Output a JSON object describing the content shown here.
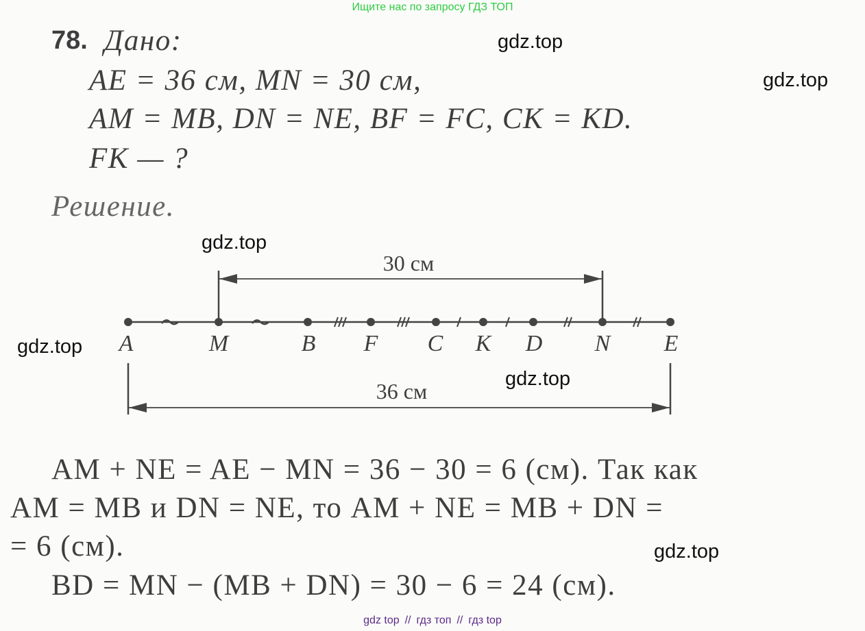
{
  "header": {
    "banner": "Ищите нас по запросу ГДЗ ТОП"
  },
  "problem": {
    "number": "78.",
    "given_label": "Дано:",
    "given": [
      "AE = 36 см, MN = 30 см,",
      "AM = MB, DN = NE, BF = FC, CK = KD.",
      "FK — ?"
    ],
    "solution_label": "Решение."
  },
  "diagram": {
    "points": [
      "A",
      "M",
      "B",
      "F",
      "C",
      "K",
      "D",
      "N",
      "E"
    ],
    "top_dimension": "30 см",
    "bottom_dimension": "36 см"
  },
  "solution": [
    "AM + NE = AE − MN = 36 − 30 = 6 (см). Так как",
    "AM = MB и DN = NE, то AM + NE = MB + DN =",
    "= 6 (см).",
    "BD = MN − (MB + DN) = 30 − 6 = 24 (см)."
  ],
  "watermarks": [
    "gdz.top",
    "gdz.top",
    "gdz.top",
    "gdz.top",
    "gdz.top",
    "gdz.top"
  ],
  "footer": {
    "links": [
      "gdz top",
      "гдз топ",
      "гдз top"
    ],
    "separator": "//"
  }
}
